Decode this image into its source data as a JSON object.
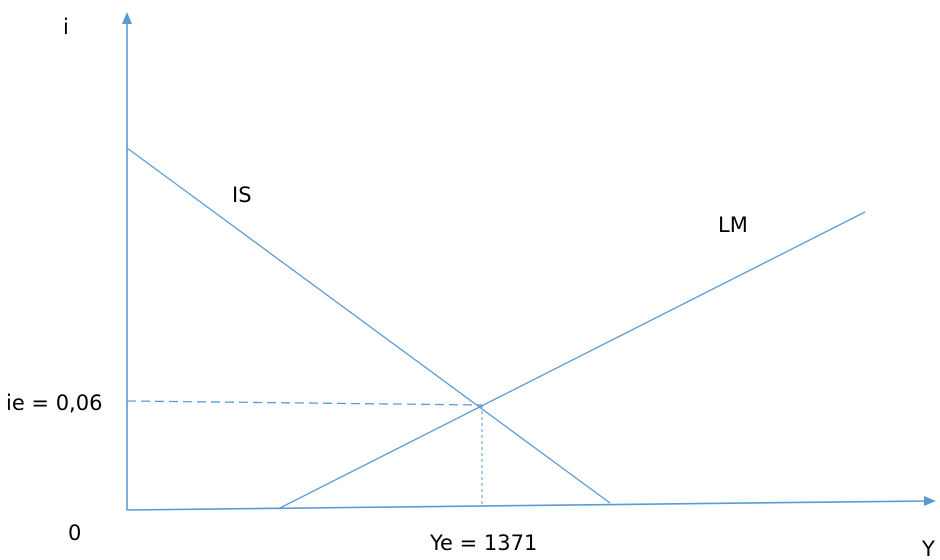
{
  "diagram": {
    "axes": {
      "y_label": "i",
      "x_label": "Y",
      "origin_label": "0"
    },
    "curves": {
      "is_label": "IS",
      "lm_label": "LM"
    },
    "equilibrium": {
      "interest_label": "ie = 0,06",
      "income_label": "Ye = 1371"
    },
    "colors": {
      "curve": "#5b9bd5",
      "text": "#000000"
    }
  }
}
